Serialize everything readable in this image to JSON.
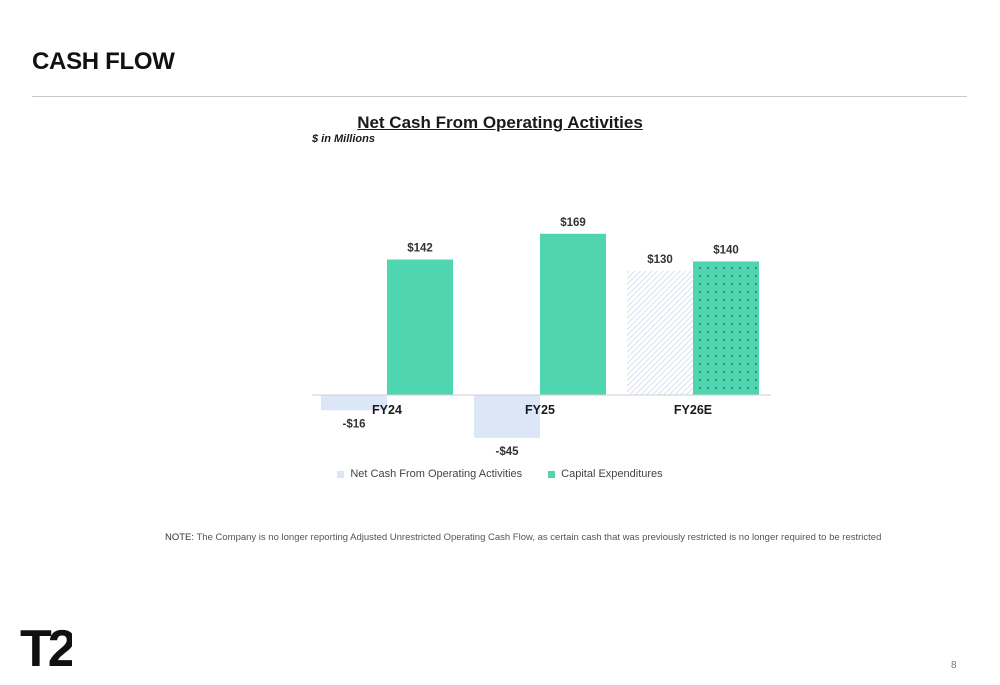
{
  "page": {
    "title": "CASH FLOW",
    "page_number": "8",
    "logo_text": "T2"
  },
  "note": {
    "label": "NOTE:",
    "text": "The Company is no longer reporting Adjusted Unrestricted Operating Cash Flow, as certain cash that was previously restricted is no longer required to be restricted"
  },
  "chart_data": {
    "type": "bar",
    "title": "Net Cash From Operating Activities",
    "subtitle": "$ in Millions",
    "categories": [
      "FY24",
      "FY25",
      "FY26E"
    ],
    "series": [
      {
        "name": "Net Cash From Operating Activities",
        "values": [
          -16,
          -45,
          130
        ],
        "labels": [
          "-$16",
          "-$45",
          "$130"
        ],
        "color": "#dbe6f7",
        "estimate_fill": "hatched"
      },
      {
        "name": "Capital Expenditures",
        "values": [
          142,
          169,
          140
        ],
        "labels": [
          "$142",
          "$169",
          "$140"
        ],
        "color": "#4fd6b0",
        "estimate_fill": "dotted"
      }
    ],
    "estimate_categories": [
      "FY26E"
    ],
    "ylim": [
      -45,
      169
    ],
    "grid": false,
    "legend_position": "bottom"
  }
}
